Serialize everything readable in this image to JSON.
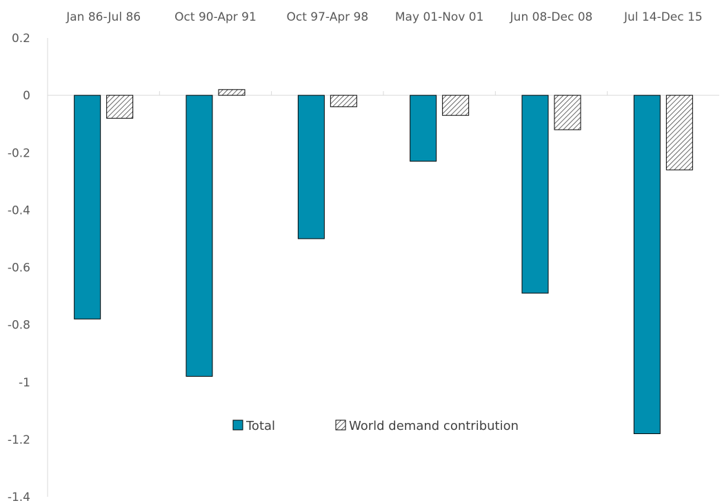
{
  "chart_data": {
    "type": "bar",
    "categories": [
      "Jan 86-Jul 86",
      "Oct 90-Apr 91",
      "Oct 97-Apr 98",
      "May 01-Nov 01",
      "Jun 08-Dec 08",
      "Jul 14-Dec 15"
    ],
    "series": [
      {
        "name": "Total",
        "values": [
          -0.78,
          -0.98,
          -0.5,
          -0.23,
          -0.69,
          -1.18
        ],
        "color": "#008FB0",
        "pattern": "solid"
      },
      {
        "name": "World demand contribution",
        "values": [
          -0.08,
          0.02,
          -0.04,
          -0.07,
          -0.12,
          -0.26
        ],
        "color": "#404040",
        "pattern": "diagonal-hatch"
      }
    ],
    "ylim": [
      -1.4,
      0.2
    ],
    "yticks": [
      0.2,
      0,
      -0.2,
      -0.4,
      -0.6,
      -0.8,
      -1,
      -1.2,
      -1.4
    ],
    "ytick_labels": [
      "0.2",
      "0",
      "-0.2",
      "-0.4",
      "-0.6",
      "-0.8",
      "-1",
      "-1.2",
      "-1.4"
    ],
    "category_axis_position": "top",
    "grid": false,
    "legend_position": "inside-bottom-center",
    "title": "",
    "xlabel": "",
    "ylabel": ""
  }
}
